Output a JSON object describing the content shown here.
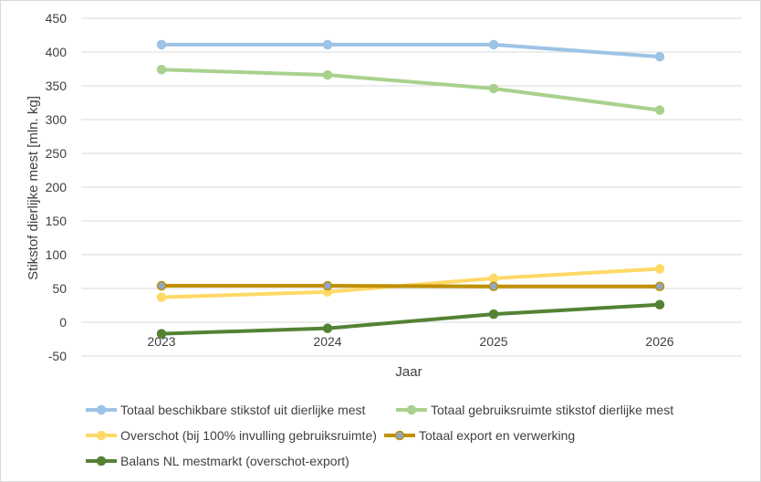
{
  "chart_data": {
    "type": "line",
    "categories": [
      "2023",
      "2024",
      "2025",
      "2026"
    ],
    "ylim": [
      -50,
      450
    ],
    "yticks": [
      "450",
      "400",
      "350",
      "300",
      "250",
      "200",
      "150",
      "100",
      "50",
      "0",
      "-50"
    ],
    "xlabel": "Jaar",
    "ylabel": "Stikstof dierlijke mest [mln. kg]",
    "grid": "horizontal",
    "legend_placement": "bottom",
    "series": [
      {
        "name": "Totaal beschikbare stikstof uit dierlijke mest",
        "color": "#9dc3e6",
        "values": [
          411,
          411,
          411,
          393
        ]
      },
      {
        "name": "Totaal gebruiksruimte stikstof dierlijke mest",
        "color": "#a9d18e",
        "values": [
          374,
          366,
          346,
          314
        ]
      },
      {
        "name": "Overschot  (bij 100% invulling gebruiksruimte)",
        "color": "#ffd966",
        "values": [
          37,
          45,
          65,
          79
        ]
      },
      {
        "name": "Totaal export en verwerking",
        "color": "#bf9000",
        "marker_color": "#8fa7c9",
        "values": [
          54,
          54,
          53,
          53
        ]
      },
      {
        "name": "Balans NL mestmarkt (overschot-export)",
        "color": "#548235",
        "values": [
          -17,
          -9,
          12,
          26
        ]
      }
    ]
  }
}
